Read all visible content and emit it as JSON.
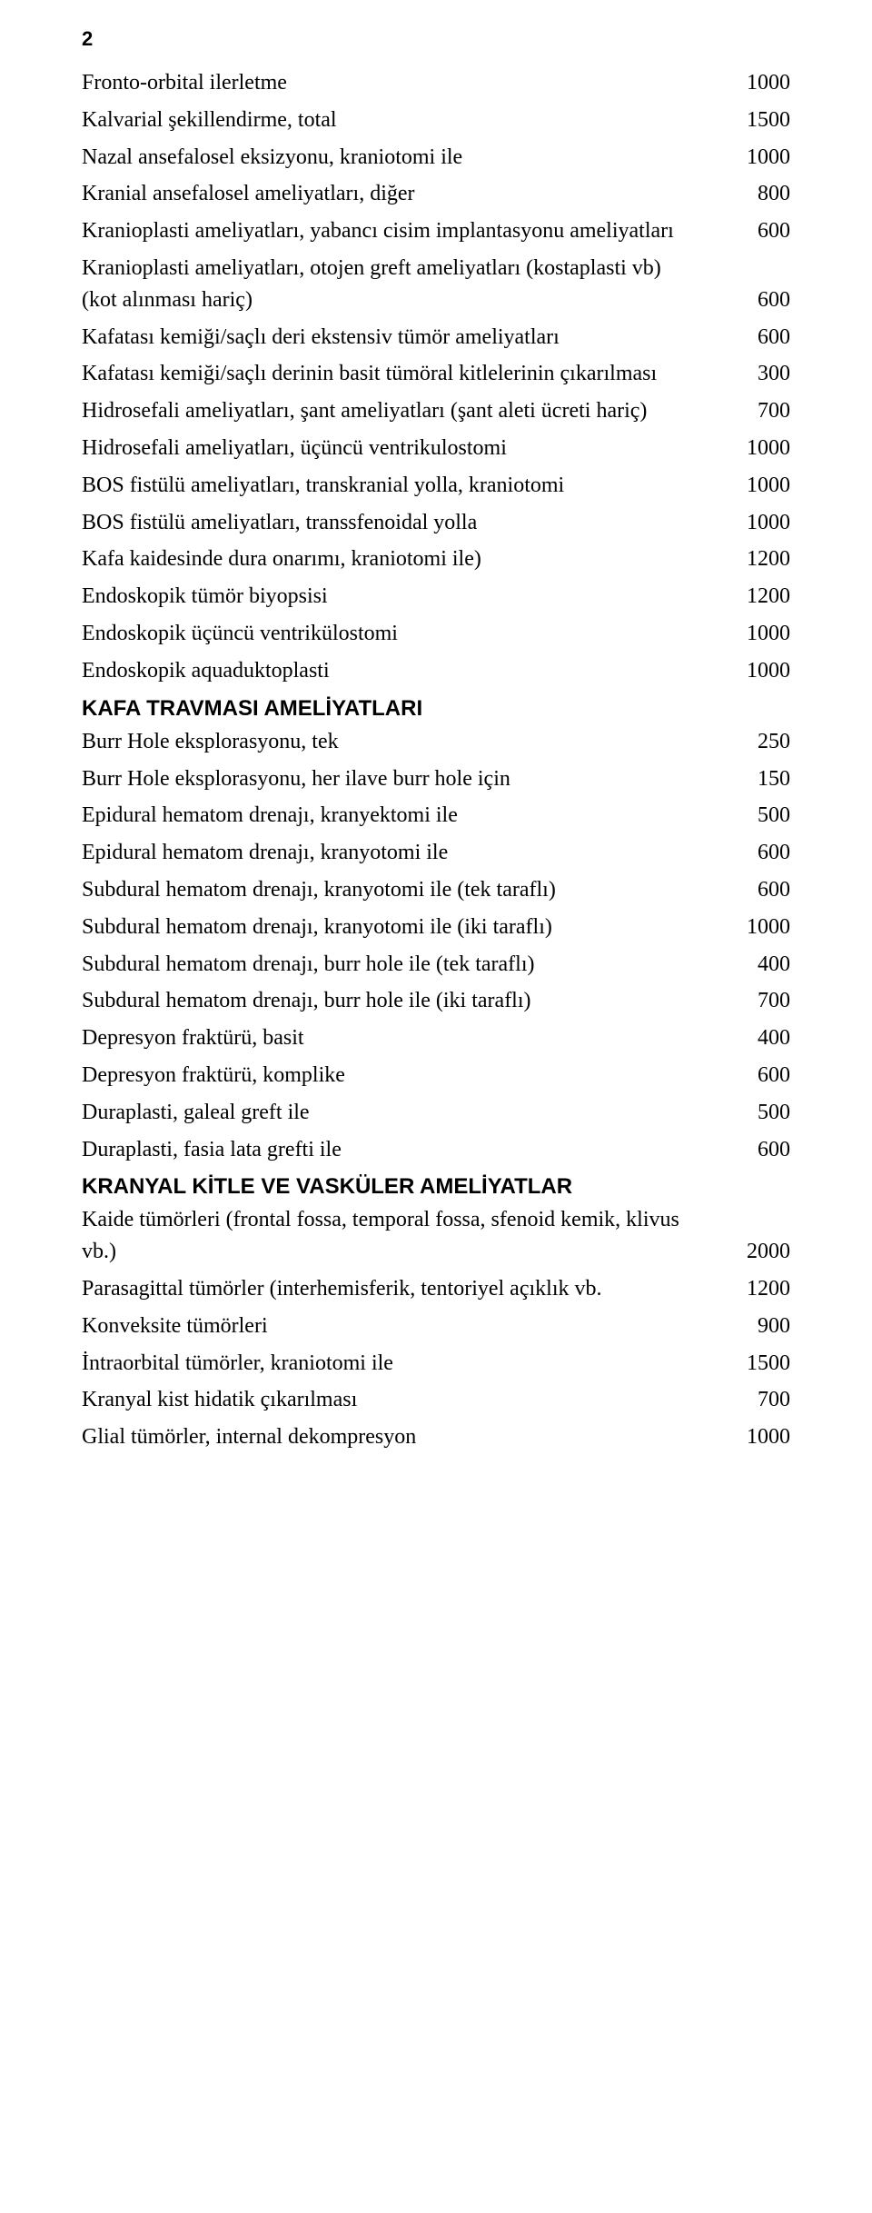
{
  "page_number": "2",
  "colors": {
    "background": "#ffffff",
    "text": "#000000"
  },
  "typography": {
    "body_font": "Georgia, Times New Roman, serif",
    "header_font": "Verdana, Geneva, sans-serif",
    "body_size_pt": 18,
    "header_weight": "bold"
  },
  "rows": [
    {
      "label": "Fronto-orbital ilerletme",
      "value": "1000"
    },
    {
      "label": "Kalvarial şekillendirme, total",
      "value": "1500"
    },
    {
      "label": "Nazal ansefalosel eksizyonu, kraniotomi ile",
      "value": "1000"
    },
    {
      "label": "Kranial ansefalosel ameliyatları, diğer",
      "value": "800"
    },
    {
      "label": "Kranioplasti ameliyatları, yabancı cisim implantasyonu ameliyatları",
      "value": "600"
    },
    {
      "label": "Kranioplasti ameliyatları, otojen greft ameliyatları (kostaplasti vb) (kot alınması hariç)",
      "value": "600"
    },
    {
      "label": "Kafatası kemiği/saçlı deri ekstensiv tümör ameliyatları",
      "value": "600"
    },
    {
      "label": "Kafatası kemiği/saçlı derinin basit tümöral kitlelerinin çıkarılması",
      "value": "300"
    },
    {
      "label": "Hidrosefali ameliyatları, şant ameliyatları (şant aleti ücreti hariç)",
      "value": "700"
    },
    {
      "label": "Hidrosefali ameliyatları, üçüncü ventrikulostomi",
      "value": "1000"
    },
    {
      "label": "BOS fistülü ameliyatları, transkranial yolla, kraniotomi",
      "value": "1000"
    },
    {
      "label": "BOS fistülü ameliyatları, transsfenoidal yolla",
      "value": "1000"
    },
    {
      "label": "Kafa kaidesinde dura onarımı, kraniotomi ile)",
      "value": "1200"
    },
    {
      "label": "Endoskopik tümör biyopsisi",
      "value": "1200"
    },
    {
      "label": "Endoskopik üçüncü ventrikülostomi",
      "value": "1000"
    },
    {
      "label": "Endoskopik aquaduktoplasti",
      "value": "1000"
    }
  ],
  "section1": {
    "title": "KAFA TRAVMASI AMELİYATLARI"
  },
  "rows2": [
    {
      "label": "Burr Hole eksplorasyonu, tek",
      "value": "250"
    },
    {
      "label": "Burr Hole eksplorasyonu, her ilave burr hole için",
      "value": "150"
    },
    {
      "label": "Epidural hematom drenajı, kranyektomi ile",
      "value": "500"
    },
    {
      "label": "Epidural hematom drenajı, kranyotomi ile",
      "value": "600"
    },
    {
      "label": "Subdural hematom drenajı, kranyotomi ile (tek taraflı)",
      "value": "600"
    },
    {
      "label": "Subdural hematom drenajı, kranyotomi ile (iki taraflı)",
      "value": "1000"
    },
    {
      "label": "Subdural hematom drenajı, burr hole ile (tek taraflı)",
      "value": "400"
    },
    {
      "label": "Subdural hematom drenajı, burr hole ile (iki taraflı)",
      "value": "700"
    },
    {
      "label": "Depresyon fraktürü, basit",
      "value": "400"
    },
    {
      "label": "Depresyon fraktürü, komplike",
      "value": "600"
    },
    {
      "label": "Duraplasti, galeal greft ile",
      "value": "500"
    },
    {
      "label": "Duraplasti, fasia lata grefti ile",
      "value": "600"
    }
  ],
  "section2": {
    "title": "KRANYAL KİTLE VE VASKÜLER AMELİYATLAR"
  },
  "rows3": [
    {
      "label": "Kaide tümörleri (frontal fossa, temporal fossa, sfenoid kemik, klivus vb.)",
      "value": "2000"
    },
    {
      "label": "Parasagittal tümörler (interhemisferik, tentoriyel açıklık vb.",
      "value": "1200"
    },
    {
      "label": "Konveksite tümörleri",
      "value": "900"
    },
    {
      "label": "İntraorbital tümörler, kraniotomi ile",
      "value": "1500"
    },
    {
      "label": "Kranyal kist hidatik çıkarılması",
      "value": "700"
    },
    {
      "label": "Glial tümörler, internal dekompresyon",
      "value": "1000"
    }
  ]
}
